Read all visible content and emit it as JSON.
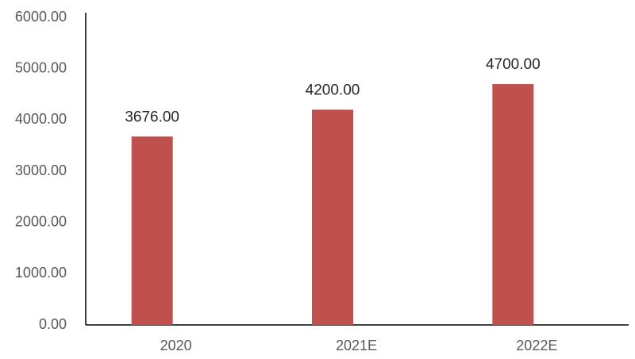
{
  "chart_data": {
    "type": "bar",
    "categories": [
      "2020",
      "2021E",
      "2022E"
    ],
    "values": [
      3676,
      4200,
      4700
    ],
    "value_labels": [
      "3676.00",
      "4200.00",
      "4700.00"
    ],
    "color": "#c0504d",
    "ylim": [
      0,
      6000
    ],
    "yticks": [
      {
        "value": 0,
        "label": "0.00"
      },
      {
        "value": 1000,
        "label": "1000.00"
      },
      {
        "value": 2000,
        "label": "2000.00"
      },
      {
        "value": 3000,
        "label": "3000.00"
      },
      {
        "value": 4000,
        "label": "4000.00"
      },
      {
        "value": 5000,
        "label": "5000.00"
      },
      {
        "value": 6000,
        "label": "6000.00"
      }
    ],
    "grid": false
  }
}
